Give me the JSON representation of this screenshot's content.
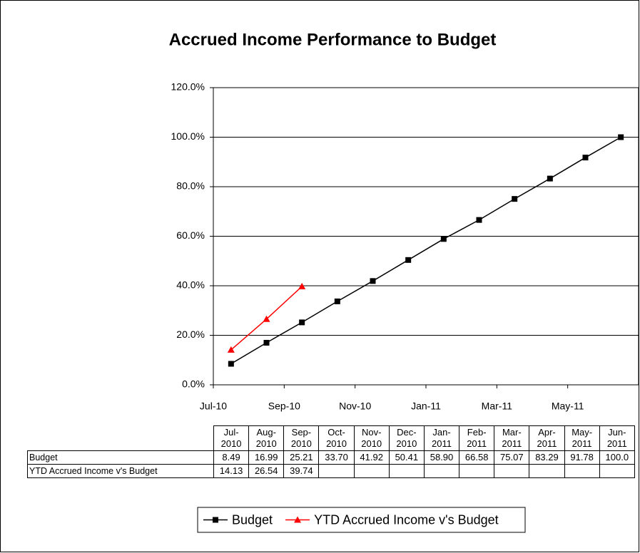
{
  "chart_data": {
    "type": "line",
    "title": "Accrued Income Performance to Budget",
    "categories": [
      "Jul-2010",
      "Aug-2010",
      "Sep-2010",
      "Oct-2010",
      "Nov-2010",
      "Dec-2010",
      "Jan-2011",
      "Feb-2011",
      "Mar-2011",
      "Apr-2011",
      "May-2011",
      "Jun-2011"
    ],
    "series": [
      {
        "name": "Budget",
        "color": "#000000",
        "marker": "square",
        "values": [
          8.49,
          16.99,
          25.21,
          33.7,
          41.92,
          50.41,
          58.9,
          66.58,
          75.07,
          83.29,
          91.78,
          100
        ],
        "value_labels": [
          "8.49",
          "16.99",
          "25.21",
          "33.70",
          "41.92",
          "50.41",
          "58.90",
          "66.58",
          "75.07",
          "83.29",
          "91.78",
          "100.0"
        ]
      },
      {
        "name": "YTD Accrued Income v's Budget",
        "color": "#ff0000",
        "marker": "triangle",
        "values": [
          14.13,
          26.54,
          39.74,
          null,
          null,
          null,
          null,
          null,
          null,
          null,
          null,
          null
        ],
        "value_labels": [
          "14.13",
          "26.54",
          "39.74",
          null,
          null,
          null,
          null,
          null,
          null,
          null,
          null,
          null
        ]
      }
    ],
    "ylim": [
      0,
      120
    ],
    "yticks": [
      {
        "value": 0,
        "label": "0.0%"
      },
      {
        "value": 20,
        "label": "20.0%"
      },
      {
        "value": 40,
        "label": "40.0%"
      },
      {
        "value": 60,
        "label": "60.0%"
      },
      {
        "value": 80,
        "label": "80.0%"
      },
      {
        "value": 100,
        "label": "100.0%"
      },
      {
        "value": 120,
        "label": "120.0%"
      }
    ],
    "xlim": [
      "2010-07",
      "2011-07"
    ],
    "xticks": [
      {
        "value": "2010-07",
        "label": "Jul-10"
      },
      {
        "value": "2010-09",
        "label": "Sep-10"
      },
      {
        "value": "2010-11",
        "label": "Nov-10"
      },
      {
        "value": "2011-01",
        "label": "Jan-11"
      },
      {
        "value": "2011-03",
        "label": "Mar-11"
      },
      {
        "value": "2011-05",
        "label": "May-11"
      }
    ],
    "grid": true,
    "legend": "bottom",
    "data_table": true
  }
}
